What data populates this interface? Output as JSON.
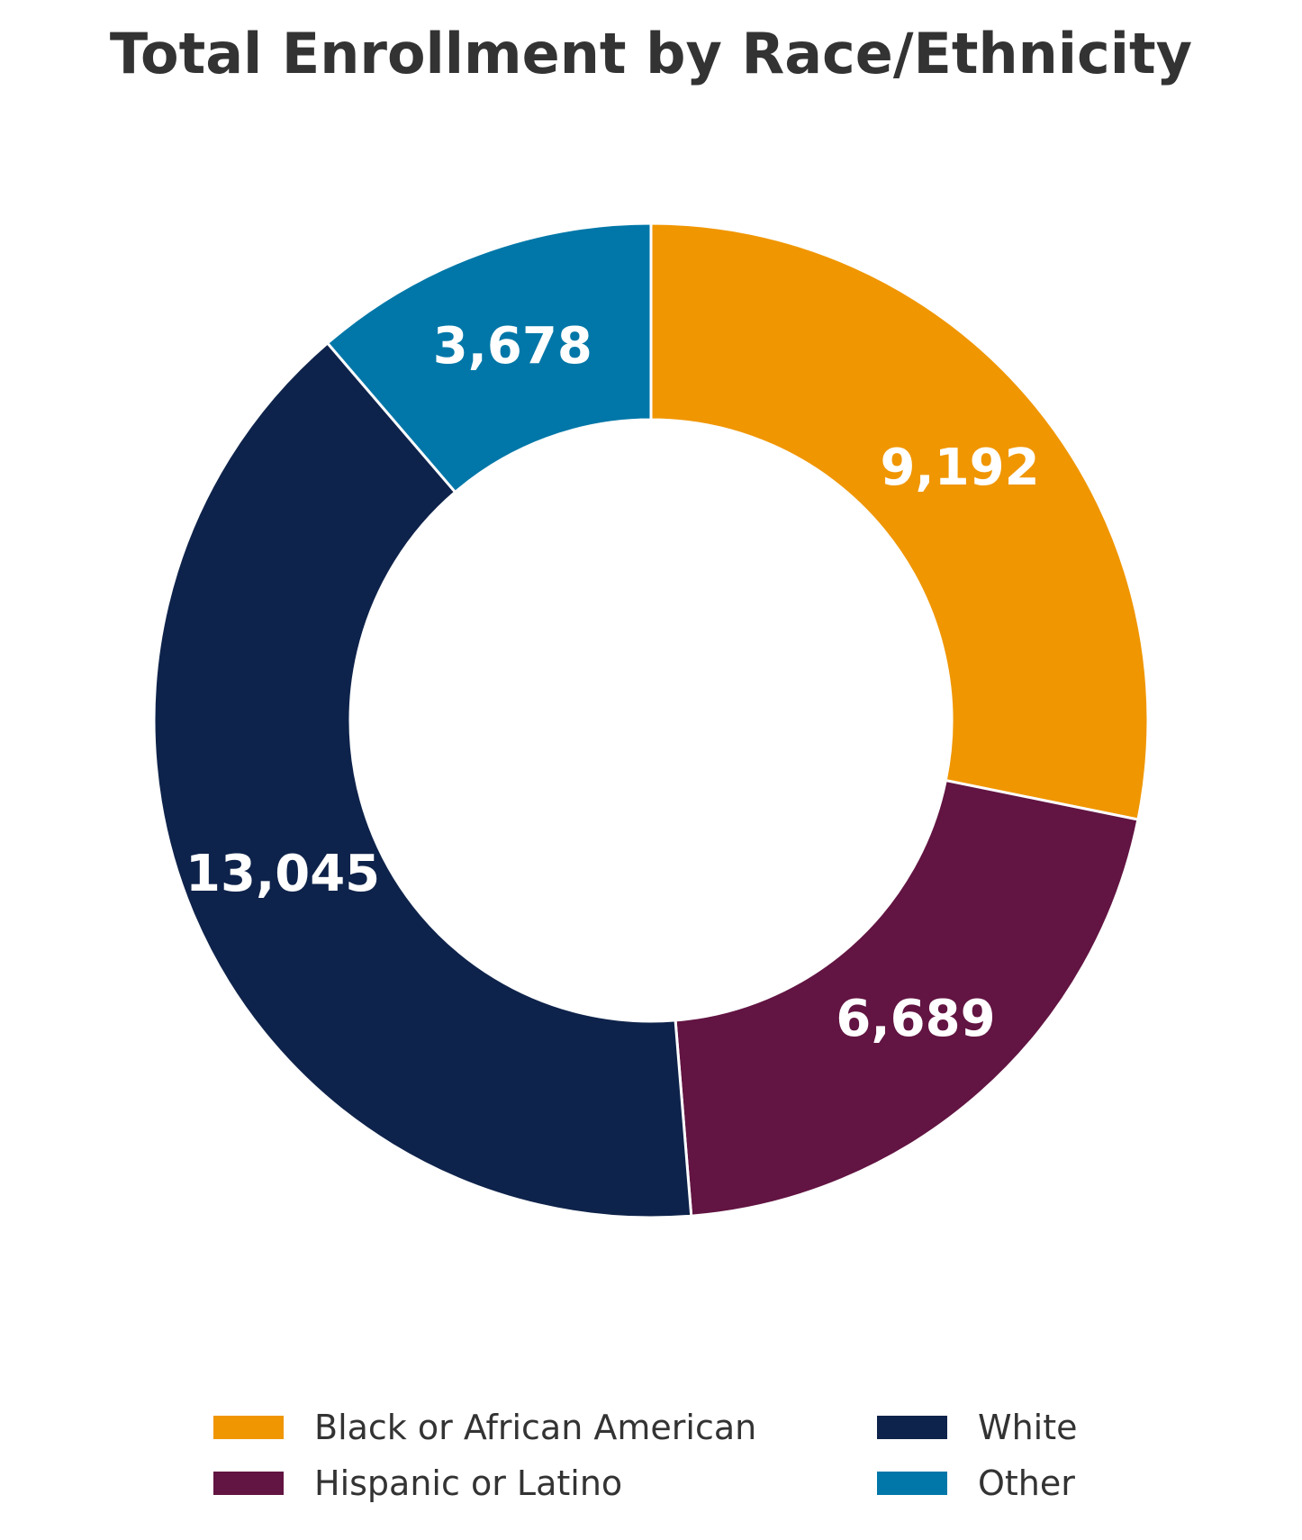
{
  "chart_data": {
    "type": "pie",
    "variant": "donut",
    "title": "Total Enrollment by Race/Ethnicity",
    "categories": [
      "Black or African American",
      "Hispanic or Latino",
      "White",
      "Other"
    ],
    "values": [
      9192,
      6689,
      13045,
      3678
    ],
    "value_labels": [
      "9,192",
      "6,689",
      "13,045",
      "3,678"
    ],
    "colors": [
      "#F09600",
      "#621442",
      "#0E234B",
      "#0077A8"
    ],
    "start_angle": "12 o'clock",
    "direction": "clockwise",
    "legend": {
      "position": "bottom",
      "columns": 2,
      "entries": [
        "Black or African American",
        "Hispanic or Latino",
        "White",
        "Other"
      ]
    }
  }
}
